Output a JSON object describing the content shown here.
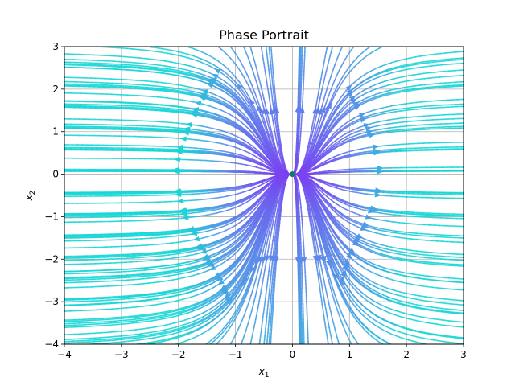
{
  "chart_data": {
    "type": "streamplot",
    "title": "Phase Portrait",
    "xlabel": "x",
    "xlabel_sub": "1",
    "ylabel": "x",
    "ylabel_sub": "2",
    "xlim": [
      -4,
      3
    ],
    "ylim": [
      -4,
      3
    ],
    "xticks": [
      -4,
      -3,
      -2,
      -1,
      0,
      1,
      2,
      3
    ],
    "yticks": [
      -4,
      -3,
      -2,
      -1,
      0,
      1,
      2,
      3
    ],
    "xtick_labels": [
      "−4",
      "−3",
      "−2",
      "−1",
      "0",
      "1",
      "2",
      "3"
    ],
    "ytick_labels": [
      "−4",
      "−3",
      "−2",
      "−1",
      "0",
      "1",
      "2",
      "3"
    ],
    "grid": true,
    "equilibrium": {
      "x": 0,
      "y": 0,
      "color": "#0d7a6a"
    },
    "colormap": {
      "low": "#7b3ff2",
      "mid": "#5a8ee8",
      "high": "#19d6d6"
    }
  }
}
